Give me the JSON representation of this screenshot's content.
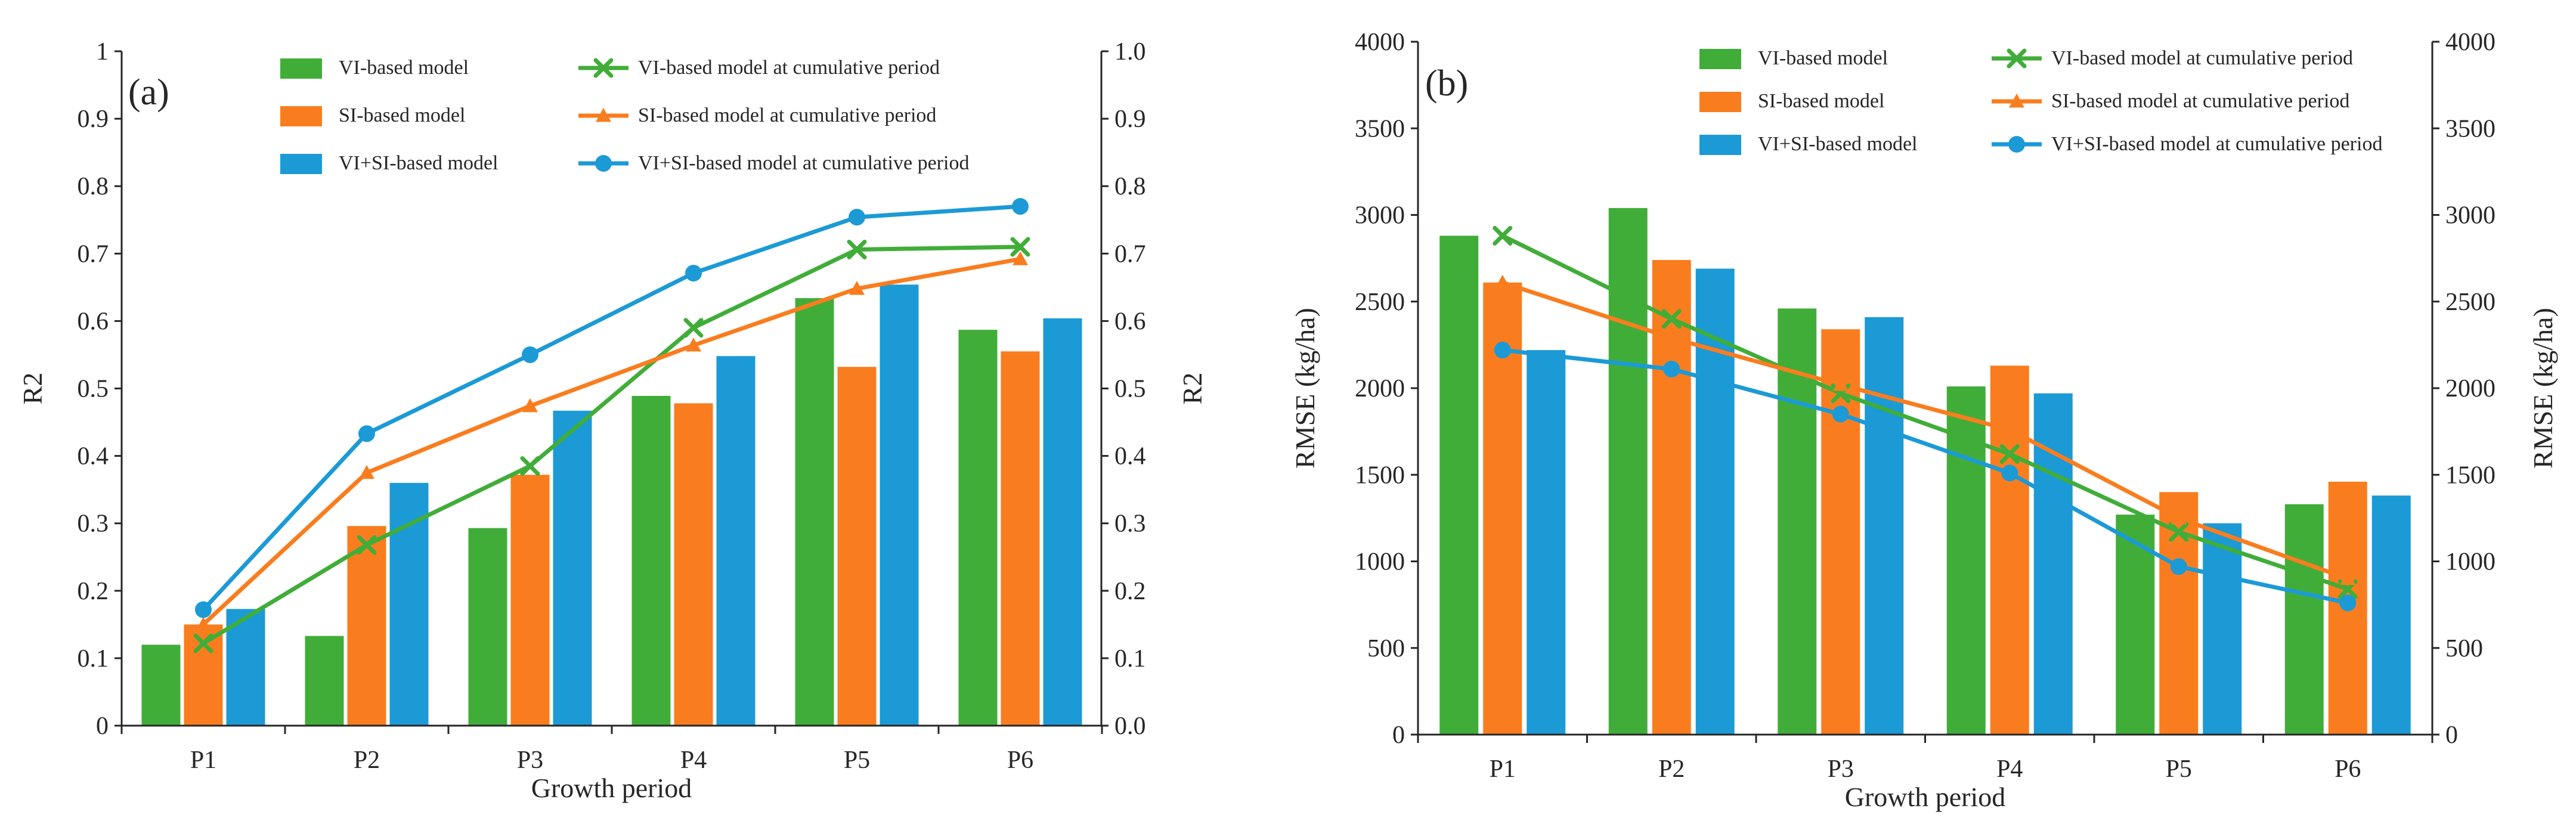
{
  "colors": {
    "vi": "#41ad39",
    "si": "#f97d1e",
    "visi": "#1b9ad6",
    "axis": "#262626"
  },
  "chart_data": [
    {
      "type": "bar",
      "panel_label": "(a)",
      "title": "",
      "xlabel": "Growth period",
      "ylabel": "R2",
      "ylabel_right": "R2",
      "ylim": [
        0,
        1
      ],
      "yticks": [
        "0",
        "0.1",
        "0.2",
        "0.3",
        "0.4",
        "0.5",
        "0.6",
        "0.7",
        "0.8",
        "0.9",
        "1"
      ],
      "yticks_right": [
        "0.0",
        "0.1",
        "0.2",
        "0.3",
        "0.4",
        "0.5",
        "0.6",
        "0.7",
        "0.8",
        "0.9",
        "1.0"
      ],
      "categories": [
        "P1",
        "P2",
        "P3",
        "P4",
        "P5",
        "P6"
      ],
      "legend_position": "top-center",
      "series": [
        {
          "name": "VI-based model",
          "kind": "bar",
          "color_key": "vi",
          "values": [
            0.12,
            0.133,
            0.293,
            0.489,
            0.634,
            0.587
          ]
        },
        {
          "name": "SI-based model",
          "kind": "bar",
          "color_key": "si",
          "values": [
            0.15,
            0.296,
            0.372,
            0.478,
            0.532,
            0.555
          ]
        },
        {
          "name": "VI+SI-based model",
          "kind": "bar",
          "color_key": "visi",
          "values": [
            0.173,
            0.36,
            0.467,
            0.548,
            0.654,
            0.604
          ]
        },
        {
          "name": "VI-based model at cumulative period",
          "kind": "line",
          "marker": "x",
          "color_key": "vi",
          "values": [
            0.122,
            0.268,
            0.385,
            0.59,
            0.706,
            0.71
          ]
        },
        {
          "name": "SI-based model at cumulative period",
          "kind": "line",
          "marker": "triangle",
          "color_key": "si",
          "values": [
            0.15,
            0.375,
            0.474,
            0.564,
            0.648,
            0.692
          ]
        },
        {
          "name": "VI+SI-based model at cumulative period",
          "kind": "line",
          "marker": "circle",
          "color_key": "visi",
          "values": [
            0.172,
            0.433,
            0.55,
            0.671,
            0.754,
            0.77
          ]
        }
      ]
    },
    {
      "type": "bar",
      "panel_label": "(b)",
      "title": "",
      "xlabel": "Growth period",
      "ylabel": "RMSE   (kg/ha)",
      "ylabel_right": "RMSE   (kg/ha)",
      "ylim": [
        0,
        4000
      ],
      "yticks": [
        "0",
        "500",
        "1000",
        "1500",
        "2000",
        "2500",
        "3000",
        "3500",
        "4000"
      ],
      "yticks_right": [
        "0",
        "500",
        "1000",
        "1500",
        "2000",
        "2500",
        "3000",
        "3500",
        "4000"
      ],
      "categories": [
        "P1",
        "P2",
        "P3",
        "P4",
        "P5",
        "P6"
      ],
      "legend_position": "top-center",
      "series": [
        {
          "name": "VI-based model",
          "kind": "bar",
          "color_key": "vi",
          "values": [
            2880,
            3040,
            2460,
            2010,
            1270,
            1330
          ]
        },
        {
          "name": "SI-based model",
          "kind": "bar",
          "color_key": "si",
          "values": [
            2610,
            2740,
            2340,
            2130,
            1400,
            1460
          ]
        },
        {
          "name": "VI+SI-based model",
          "kind": "bar",
          "color_key": "visi",
          "values": [
            2220,
            2690,
            2410,
            1970,
            1220,
            1380
          ]
        },
        {
          "name": "VI-based model at cumulative period",
          "kind": "line",
          "marker": "x",
          "color_key": "vi",
          "values": [
            2880,
            2400,
            1970,
            1620,
            1170,
            840
          ]
        },
        {
          "name": "SI-based model at cumulative period",
          "kind": "line",
          "marker": "triangle",
          "color_key": "si",
          "values": [
            2610,
            2290,
            2020,
            1760,
            1250,
            900
          ]
        },
        {
          "name": "VI+SI-based model at cumulative period",
          "kind": "line",
          "marker": "circle",
          "color_key": "visi",
          "values": [
            2220,
            2110,
            1850,
            1510,
            970,
            760
          ]
        }
      ]
    }
  ]
}
